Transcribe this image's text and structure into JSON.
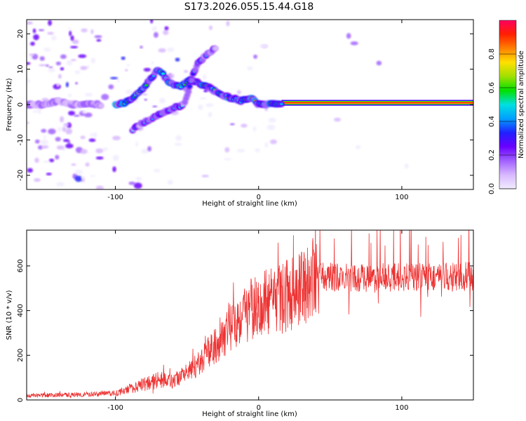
{
  "title": "S173.2026.055.15.44.G18",
  "chart_data": [
    {
      "type": "heatmap",
      "xlabel": "Height of straight line (km)",
      "ylabel": "Frequency (Hz)",
      "xlim": [
        -162,
        150
      ],
      "ylim": [
        -24,
        24
      ],
      "xticks": [
        -100,
        0,
        100
      ],
      "yticks": [
        -20,
        -10,
        0,
        10,
        20
      ],
      "colorbar": {
        "label": "Normalized spectral amplitude",
        "range": [
          0,
          1
        ],
        "ticks": [
          0.0,
          0.2,
          0.4,
          0.6,
          0.8
        ],
        "colors": [
          "#f2ecff",
          "#d8b8ff",
          "#a060ff",
          "#6a00ff",
          "#2020ff",
          "#00a0ff",
          "#00e0e0",
          "#00e000",
          "#a0e000",
          "#ffe000",
          "#ff8000",
          "#ff2000",
          "#ff0060"
        ]
      },
      "ridges": [
        {
          "name": "steady tone",
          "x": [
            16,
            150
          ],
          "y": [
            0.5,
            0.5
          ],
          "amplitude": 0.95
        },
        {
          "name": "upper ridge",
          "x": [
            -100,
            -90,
            -80,
            -70,
            -62,
            -55,
            -48,
            -42,
            -35,
            -28,
            -20,
            -12,
            -6,
            0,
            8,
            16
          ],
          "y": [
            0,
            1,
            5,
            10,
            6,
            5,
            7,
            6,
            5,
            3,
            2,
            1,
            2,
            0,
            0,
            0.5
          ],
          "amplitude": 0.55
        },
        {
          "name": "lower ridge",
          "x": [
            -88,
            -80,
            -70,
            -60,
            -52,
            -46,
            -42,
            -36,
            -30
          ],
          "y": [
            -7,
            -5,
            -3,
            -1,
            0,
            8,
            12,
            14,
            16
          ],
          "amplitude": 0.4
        },
        {
          "name": "left band",
          "x": [
            -162,
            -150,
            -140,
            -130,
            -120,
            -110
          ],
          "y": [
            0,
            0,
            1,
            0,
            0,
            0
          ],
          "amplitude": 0.25
        }
      ]
    },
    {
      "type": "line",
      "xlabel": "Height of straight line (km)",
      "ylabel": "SNR (10 * v/v)",
      "xlim": [
        -162,
        150
      ],
      "ylim": [
        0,
        760
      ],
      "xticks": [
        -100,
        0,
        100
      ],
      "yticks": [
        0,
        200,
        400,
        600
      ],
      "color": "#ee3333",
      "series": [
        {
          "name": "SNR",
          "x": [
            -162,
            -140,
            -120,
            -100,
            -90,
            -80,
            -70,
            -60,
            -50,
            -40,
            -30,
            -20,
            -10,
            0,
            10,
            20,
            30,
            40,
            50,
            60,
            80,
            100,
            120,
            140,
            150
          ],
          "y": [
            20,
            22,
            25,
            30,
            50,
            70,
            90,
            85,
            120,
            170,
            250,
            330,
            390,
            420,
            450,
            470,
            500,
            560,
            550,
            545,
            545,
            550,
            550,
            550,
            555
          ]
        }
      ]
    }
  ]
}
